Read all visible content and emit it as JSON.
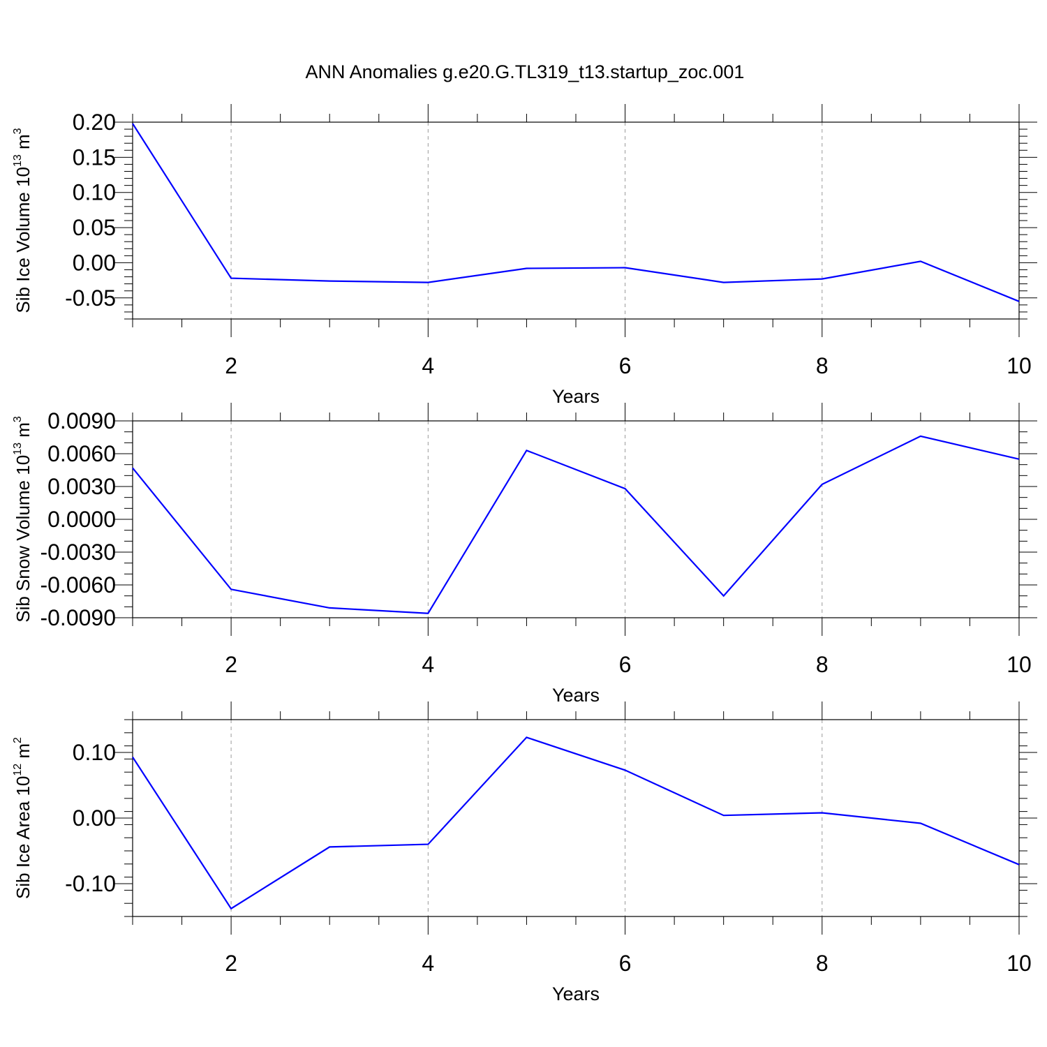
{
  "title": "ANN Anomalies g.e20.G.TL319_t13.startup_zoc.001",
  "colors": {
    "line": "#0000ff",
    "axis": "#000000",
    "grid": "#999999"
  },
  "chart_data": [
    {
      "type": "line",
      "ylabel_main": "Sib Ice Volume 10",
      "ylabel_sup1": "13",
      "ylabel_mid": " m",
      "ylabel_sup2": "3",
      "xlabel": "Years",
      "xlim": [
        1,
        10
      ],
      "ylim": [
        -0.08,
        0.2
      ],
      "major_ticks": [
        -0.05,
        0.0,
        0.05,
        0.1,
        0.15,
        0.2
      ],
      "major_labels": [
        "-0.05",
        "0.00",
        "0.05",
        "0.10",
        "0.15",
        "0.20"
      ],
      "minor_step": 0.01,
      "x_ticks": [
        2,
        4,
        6,
        8,
        10
      ],
      "x_tick_labels": [
        "2",
        "4",
        "6",
        "8",
        "10"
      ],
      "x": [
        1,
        2,
        3,
        4,
        5,
        6,
        7,
        8,
        9,
        10
      ],
      "y": [
        0.198,
        -0.022,
        -0.026,
        -0.028,
        -0.008,
        -0.007,
        -0.028,
        -0.023,
        0.002,
        -0.055
      ]
    },
    {
      "type": "line",
      "ylabel_main": "Sib Snow Volume 10",
      "ylabel_sup1": "13",
      "ylabel_mid": " m",
      "ylabel_sup2": "3",
      "xlabel": "Years",
      "xlim": [
        1,
        10
      ],
      "ylim": [
        -0.009,
        0.009
      ],
      "major_ticks": [
        -0.009,
        -0.006,
        -0.003,
        0.0,
        0.003,
        0.006,
        0.009
      ],
      "major_labels": [
        "-0.0090",
        "-0.0060",
        "-0.0030",
        "0.0000",
        "0.0030",
        "0.0060",
        "0.0090"
      ],
      "minor_step": 0.001,
      "x_ticks": [
        2,
        4,
        6,
        8,
        10
      ],
      "x_tick_labels": [
        "2",
        "4",
        "6",
        "8",
        "10"
      ],
      "x": [
        1,
        2,
        3,
        4,
        5,
        6,
        7,
        8,
        9,
        10
      ],
      "y": [
        0.0047,
        -0.0064,
        -0.0081,
        -0.0086,
        0.0063,
        0.0028,
        -0.007,
        0.0032,
        0.0076,
        0.0055
      ]
    },
    {
      "type": "line",
      "ylabel_main": "Sib Ice Area 10",
      "ylabel_sup1": "12",
      "ylabel_mid": " m",
      "ylabel_sup2": "2",
      "xlabel": "Years",
      "xlim": [
        1,
        10
      ],
      "ylim": [
        -0.15,
        0.15
      ],
      "major_ticks": [
        -0.1,
        0.0,
        0.1
      ],
      "major_labels": [
        "-0.10",
        "0.00",
        "0.10"
      ],
      "minor_step": 0.02,
      "x_ticks": [
        2,
        4,
        6,
        8,
        10
      ],
      "x_tick_labels": [
        "2",
        "4",
        "6",
        "8",
        "10"
      ],
      "x": [
        1,
        2,
        3,
        4,
        5,
        6,
        7,
        8,
        9,
        10
      ],
      "y": [
        0.093,
        -0.138,
        -0.044,
        -0.04,
        0.123,
        0.073,
        0.004,
        0.008,
        -0.008,
        -0.071
      ]
    }
  ]
}
